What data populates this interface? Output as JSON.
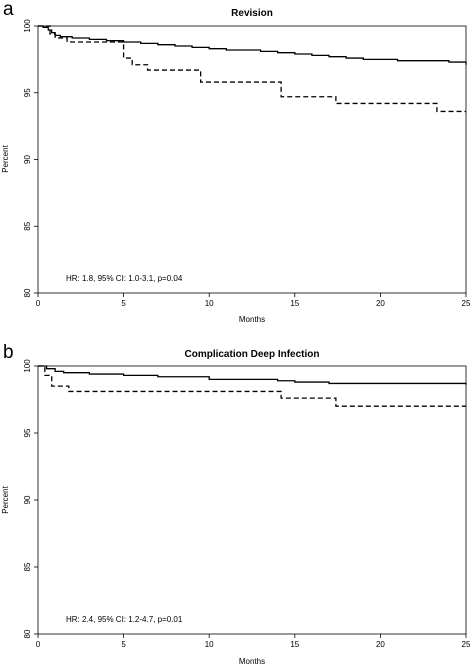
{
  "chart_data": [
    {
      "panel_label": "a",
      "type": "line",
      "title": "Revision",
      "xlabel": "Months",
      "ylabel": "Percent",
      "xlim": [
        0,
        25
      ],
      "ylim": [
        80,
        100
      ],
      "xticks": [
        "0",
        "5",
        "10",
        "15",
        "20",
        "25"
      ],
      "yticks": [
        "80",
        "85",
        "90",
        "95",
        "100"
      ],
      "annotation": "HR: 1.8, 95% CI: 1.0-3.1, p=0.04",
      "series": [
        {
          "style": "solid",
          "x": [
            0,
            0.3,
            0.6,
            0.8,
            1.0,
            1.3,
            2.0,
            3.0,
            4.0,
            5.0,
            6.0,
            7.0,
            8.0,
            9.0,
            10.0,
            11.0,
            12.0,
            13.0,
            14.0,
            15.0,
            16.0,
            17.0,
            18.0,
            19.0,
            20.0,
            21.0,
            22.0,
            23.0,
            24.0,
            25.0
          ],
          "y": [
            100,
            99.9,
            99.7,
            99.5,
            99.3,
            99.2,
            99.1,
            99.0,
            98.9,
            98.8,
            98.7,
            98.6,
            98.5,
            98.4,
            98.3,
            98.2,
            98.2,
            98.1,
            98.0,
            97.9,
            97.8,
            97.7,
            97.6,
            97.5,
            97.5,
            97.4,
            97.4,
            97.4,
            97.3,
            97.1
          ]
        },
        {
          "style": "dashed",
          "x": [
            0,
            0.7,
            1.0,
            1.7,
            5.0,
            5.5,
            6.4,
            9.5,
            14.2,
            17.4,
            23.3,
            25.0
          ],
          "y": [
            100,
            99.4,
            99.1,
            98.8,
            97.6,
            97.1,
            96.7,
            95.8,
            94.7,
            94.2,
            93.6,
            93.6
          ]
        }
      ]
    },
    {
      "panel_label": "b",
      "type": "line",
      "title": "Complication Deep Infection",
      "xlabel": "Months",
      "ylabel": "Percent",
      "xlim": [
        0,
        25
      ],
      "ylim": [
        80,
        100
      ],
      "xticks": [
        "0",
        "5",
        "10",
        "15",
        "20",
        "25"
      ],
      "yticks": [
        "80",
        "85",
        "90",
        "95",
        "100"
      ],
      "annotation": "HR: 2.4, 95% CI: 1.2-4.7, p=0.01",
      "series": [
        {
          "style": "solid",
          "x": [
            0,
            0.5,
            1.0,
            1.5,
            3.0,
            5.0,
            7.0,
            10.0,
            12.0,
            14.0,
            15.0,
            17.0,
            18.0,
            20.0,
            22.0,
            24.0,
            25.0
          ],
          "y": [
            100,
            99.8,
            99.6,
            99.5,
            99.4,
            99.3,
            99.2,
            99.0,
            99.0,
            98.9,
            98.8,
            98.7,
            98.7,
            98.7,
            98.7,
            98.7,
            98.6
          ]
        },
        {
          "style": "dashed",
          "x": [
            0,
            0.4,
            0.8,
            1.8,
            14.2,
            17.4,
            25.0
          ],
          "y": [
            100,
            99.3,
            98.5,
            98.1,
            97.6,
            97.0,
            97.0
          ]
        }
      ]
    }
  ]
}
